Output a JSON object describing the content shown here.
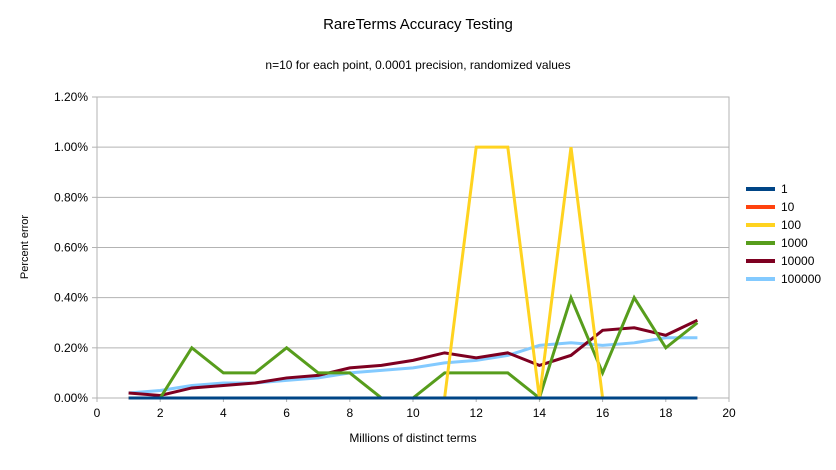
{
  "title": "RareTerms Accuracy Testing",
  "subtitle": "n=10 for each point, 0.0001 precision, randomized values",
  "chart_data": {
    "type": "line",
    "title": "RareTerms Accuracy Testing",
    "subtitle": "n=10 for each point, 0.0001 precision, randomized values",
    "xlabel": "Millions of distinct terms",
    "ylabel": "Percent error",
    "xlim": [
      0,
      20
    ],
    "ylim_percent": [
      0,
      1.2
    ],
    "x_tick_labels": [
      "0",
      "2",
      "4",
      "6",
      "8",
      "10",
      "12",
      "14",
      "16",
      "18",
      "20"
    ],
    "y_tick_labels": [
      "0.00%",
      "0.20%",
      "0.40%",
      "0.60%",
      "0.80%",
      "1.00%",
      "1.20%"
    ],
    "grid": "horizontal",
    "grid_color": "#b3b3b3",
    "legend_position": "right",
    "x": [
      1,
      2,
      3,
      4,
      5,
      6,
      7,
      8,
      9,
      10,
      11,
      12,
      13,
      14,
      15,
      16,
      17,
      18,
      19
    ],
    "series": [
      {
        "name": "1",
        "color": "#004586",
        "values_percent": [
          0,
          0,
          0,
          0,
          0,
          0,
          0,
          0,
          0,
          0,
          0,
          0,
          0,
          0,
          0,
          0,
          0,
          0,
          0
        ]
      },
      {
        "name": "10",
        "color": "#ff420e",
        "values_percent": [
          0,
          0,
          0,
          0,
          0,
          0,
          0,
          0,
          0,
          0,
          0,
          0,
          0,
          0,
          0,
          0,
          0,
          0,
          0
        ]
      },
      {
        "name": "100",
        "color": "#ffd320",
        "values_percent": [
          0,
          0,
          0,
          0,
          0,
          0,
          0,
          0,
          0,
          0,
          0,
          1.0,
          1.0,
          0,
          1.0,
          0,
          0,
          0,
          0
        ]
      },
      {
        "name": "1000",
        "color": "#579d1c",
        "values_percent": [
          0,
          0,
          0.2,
          0.1,
          0.1,
          0.2,
          0.1,
          0.1,
          0,
          0,
          0.1,
          0.1,
          0.1,
          0,
          0.4,
          0.1,
          0.4,
          0.2,
          0.3
        ]
      },
      {
        "name": "10000",
        "color": "#7e0021",
        "values_percent": [
          0.02,
          0.01,
          0.04,
          0.05,
          0.06,
          0.08,
          0.09,
          0.12,
          0.13,
          0.15,
          0.18,
          0.16,
          0.18,
          0.13,
          0.17,
          0.27,
          0.28,
          0.25,
          0.31
        ]
      },
      {
        "name": "100000",
        "color": "#83caff",
        "values_percent": [
          0.02,
          0.03,
          0.05,
          0.06,
          0.06,
          0.07,
          0.08,
          0.1,
          0.11,
          0.12,
          0.14,
          0.15,
          0.17,
          0.21,
          0.22,
          0.21,
          0.22,
          0.24,
          0.24
        ]
      }
    ]
  }
}
